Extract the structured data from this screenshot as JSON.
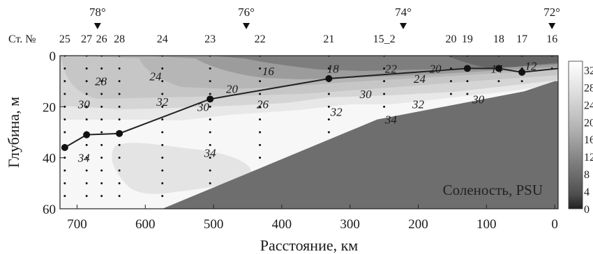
{
  "chart_data": {
    "type": "contour",
    "xlabel": "Расстояние, км",
    "ylabel": "Глубина, м",
    "xlim": [
      725,
      -5
    ],
    "ylim": [
      0,
      60
    ],
    "x_ticks": [
      700,
      600,
      500,
      400,
      300,
      200,
      100,
      0
    ],
    "y_ticks": [
      0,
      20,
      40,
      60
    ],
    "station_prefix": "Ст. №",
    "stations": [
      {
        "label": "25",
        "x": 718
      },
      {
        "label": "27",
        "x": 686
      },
      {
        "label": "26",
        "x": 664
      },
      {
        "label": "28",
        "x": 638
      },
      {
        "label": "24",
        "x": 575
      },
      {
        "label": "23",
        "x": 505
      },
      {
        "label": "22",
        "x": 432
      },
      {
        "label": "21",
        "x": 331
      },
      {
        "label": "15_2",
        "x": 250
      },
      {
        "label": "20",
        "x": 152
      },
      {
        "label": "19",
        "x": 128
      },
      {
        "label": "18",
        "x": 82
      },
      {
        "label": "17",
        "x": 48
      },
      {
        "label": "16",
        "x": 4
      }
    ],
    "longitudes": [
      {
        "label": "78°",
        "x": 670
      },
      {
        "label": "76°",
        "x": 452
      },
      {
        "label": "74°",
        "x": 222
      },
      {
        "label": "72°",
        "x": 4
      }
    ],
    "colorbar": {
      "ticks": [
        32,
        28,
        24,
        20,
        16,
        12,
        8,
        4,
        0
      ],
      "min": 0,
      "max": 34,
      "colors": [
        "#ffffff",
        "#f0f0f0",
        "#e0e0e0",
        "#cfcfcf",
        "#bdbdbd",
        "#a9a9a9",
        "#929292",
        "#7b7b7b",
        "#666666",
        "#4f4f4f",
        "#222222"
      ]
    },
    "annotation": "Соленость, PSU",
    "contour_labels": [
      {
        "text": "28",
        "x": 665,
        "y": 10
      },
      {
        "text": "24",
        "x": 585,
        "y": 8
      },
      {
        "text": "16",
        "x": 420,
        "y": 6
      },
      {
        "text": "18",
        "x": 325,
        "y": 5
      },
      {
        "text": "22",
        "x": 240,
        "y": 5
      },
      {
        "text": "20",
        "x": 175,
        "y": 5
      },
      {
        "text": "14",
        "x": 85,
        "y": 5
      },
      {
        "text": "12",
        "x": 35,
        "y": 4
      },
      {
        "text": "30",
        "x": 690,
        "y": 19
      },
      {
        "text": "32",
        "x": 575,
        "y": 18
      },
      {
        "text": "20",
        "x": 473,
        "y": 13
      },
      {
        "text": "30",
        "x": 515,
        "y": 20
      },
      {
        "text": "26",
        "x": 428,
        "y": 19
      },
      {
        "text": "30",
        "x": 277,
        "y": 15
      },
      {
        "text": "24",
        "x": 198,
        "y": 9
      },
      {
        "text": "32",
        "x": 320,
        "y": 22
      },
      {
        "text": "32",
        "x": 200,
        "y": 19
      },
      {
        "text": "30",
        "x": 112,
        "y": 17
      },
      {
        "text": "34",
        "x": 240,
        "y": 25
      },
      {
        "text": "34",
        "x": 505,
        "y": 38
      },
      {
        "text": "34",
        "x": 690,
        "y": 40
      }
    ],
    "pycnocline_line": [
      {
        "x": 718,
        "y": 36
      },
      {
        "x": 686,
        "y": 31
      },
      {
        "x": 638,
        "y": 30.5
      },
      {
        "x": 505,
        "y": 17
      },
      {
        "x": 331,
        "y": 9
      },
      {
        "x": 128,
        "y": 5
      },
      {
        "x": 82,
        "y": 5
      },
      {
        "x": 48,
        "y": 6.5
      },
      {
        "x": -5,
        "y": 5
      }
    ],
    "pycnocline_markers": [
      {
        "x": 718,
        "y": 36
      },
      {
        "x": 686,
        "y": 31
      },
      {
        "x": 638,
        "y": 30.5
      },
      {
        "x": 505,
        "y": 17
      },
      {
        "x": 331,
        "y": 9
      },
      {
        "x": 128,
        "y": 5
      },
      {
        "x": 82,
        "y": 5
      },
      {
        "x": 48,
        "y": 6.5
      }
    ],
    "bottom_profile": [
      {
        "x": 575,
        "y": 60
      },
      {
        "x": 260,
        "y": 25
      },
      {
        "x": 45,
        "y": 14
      },
      {
        "x": 0,
        "y": 10
      },
      {
        "x": -5,
        "y": 10
      }
    ]
  }
}
